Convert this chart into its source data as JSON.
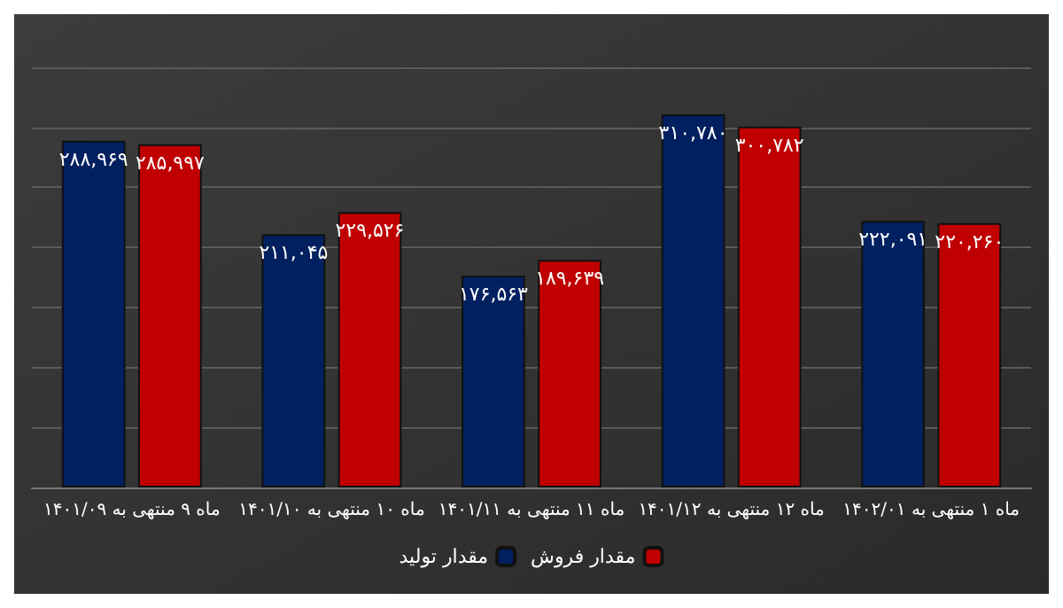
{
  "chart_data": {
    "type": "bar",
    "categories": [
      "ماه ۹ منتهی به ۱۴۰۱/۰۹",
      "ماه ۱۰ منتهی به ۱۴۰۱/۱۰",
      "ماه ۱۱ منتهی به ۱۴۰۱/۱۱",
      "ماه ۱۲ منتهی به ۱۴۰۱/۱۲",
      "ماه ۱ منتهی به ۱۴۰۲/۰۱"
    ],
    "series": [
      {
        "name": "مقدار تولید",
        "color": "#002060",
        "values": [
          288969,
          211045,
          176563,
          310780,
          222091
        ],
        "value_labels": [
          "۲۸۸,۹۶۹",
          "۲۱۱,۰۴۵",
          "۱۷۶,۵۶۳",
          "۳۱۰,۷۸۰",
          "۲۲۲,۰۹۱"
        ]
      },
      {
        "name": "مقدار فروش",
        "color": "#c00000",
        "values": [
          285997,
          229526,
          189639,
          300782,
          220260
        ],
        "value_labels": [
          "۲۸۵,۹۹۷",
          "۲۲۹,۵۲۶",
          "۱۸۹,۶۳۹",
          "۳۰۰,۷۸۲",
          "۲۲۰,۲۶۰"
        ]
      }
    ],
    "grid": "y",
    "legend": "bottom"
  }
}
